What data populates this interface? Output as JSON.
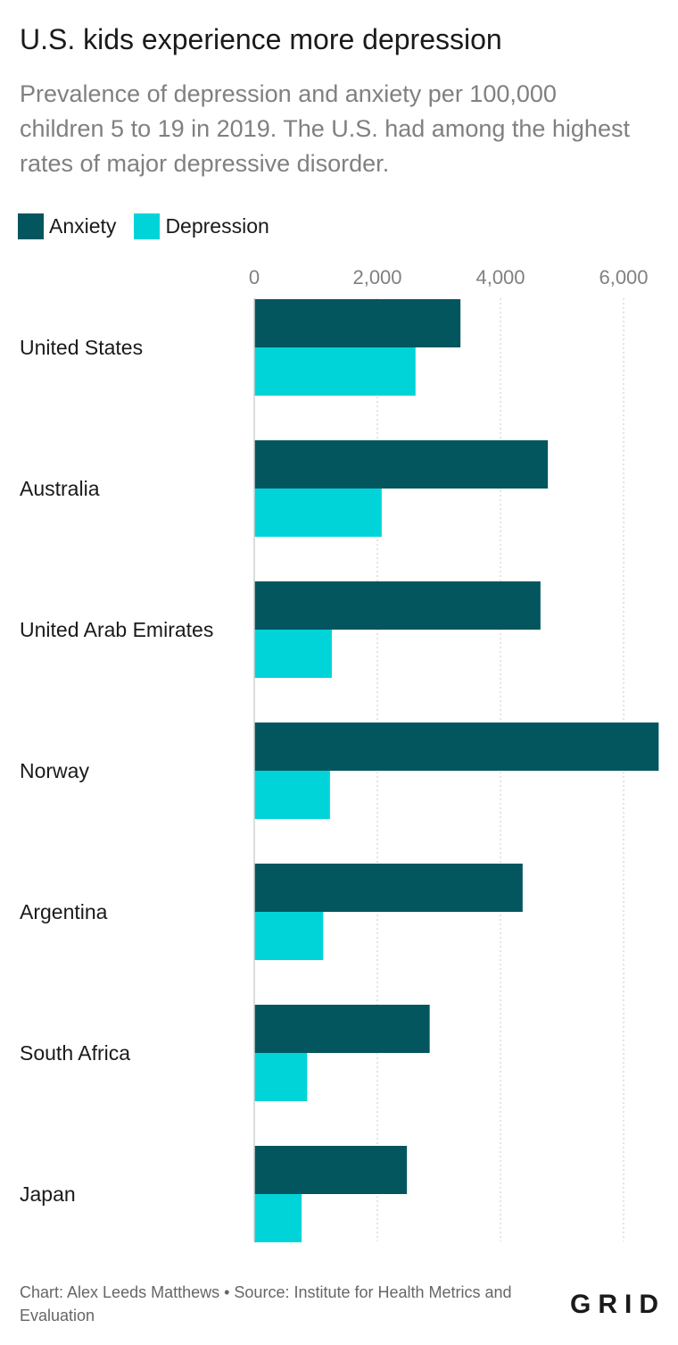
{
  "title": "U.S. kids experience more depression",
  "subtitle": "Prevalence of depression and anxiety per 100,000 children 5 to 19 in 2019. The U.S. had among the highest rates of major depressive disorder.",
  "legend": [
    {
      "label": "Anxiety",
      "color": "#03565e"
    },
    {
      "label": "Depression",
      "color": "#00d4d8"
    }
  ],
  "footer": {
    "credit": "Chart: Alex Leeds Matthews • Source: Institute for Health Metrics and Evaluation",
    "logo_text": "GRID"
  },
  "chart_data": {
    "type": "bar",
    "orientation": "horizontal",
    "title": "U.S. kids experience more depression",
    "subtitle": "Prevalence of depression and anxiety per 100,000 children 5 to 19 in 2019. The U.S. had among the highest rates of major depressive disorder.",
    "categories": [
      "United States",
      "Australia",
      "United Arab Emirates",
      "Norway",
      "Argentina",
      "South Africa",
      "Japan"
    ],
    "series": [
      {
        "name": "Anxiety",
        "color": "#03565e",
        "values": [
          3350,
          4770,
          4650,
          6570,
          4360,
          2850,
          2480
        ]
      },
      {
        "name": "Depression",
        "color": "#00d4d8",
        "values": [
          2620,
          2070,
          1260,
          1230,
          1120,
          860,
          770
        ]
      }
    ],
    "xlim": [
      0,
      6600
    ],
    "x_ticks": [
      0,
      2000,
      4000,
      6000
    ],
    "x_tick_labels": [
      "0",
      "2,000",
      "4,000",
      "6,000"
    ],
    "grid": true,
    "legend_position": "top-left",
    "xlabel": "",
    "ylabel": ""
  }
}
